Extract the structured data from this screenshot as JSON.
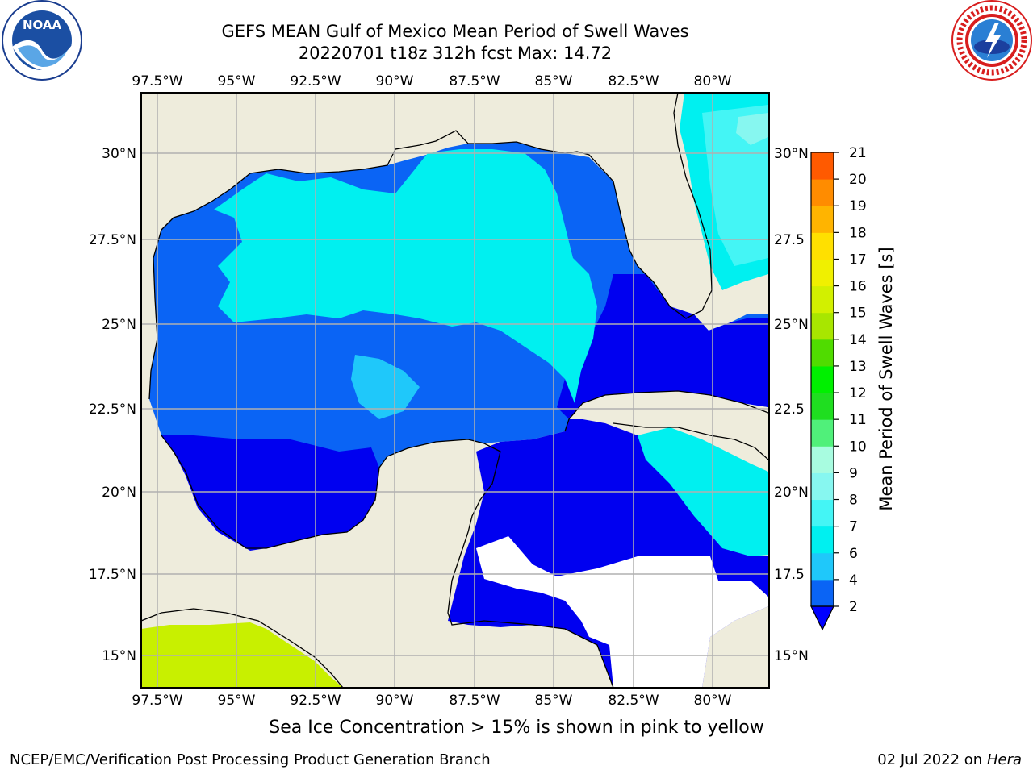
{
  "header": {
    "title_line1": "GEFS MEAN Gulf of Mexico Mean Period of Swell Waves",
    "title_line2": "20220701 t18z 312h fcst   Max: 14.72"
  },
  "map": {
    "lon_labels": [
      "97.5°W",
      "95°W",
      "92.5°W",
      "90°W",
      "87.5°W",
      "85°W",
      "82.5°W",
      "80°W"
    ],
    "lat_labels_left": [
      "30°N",
      "27.5°N",
      "25°N",
      "22.5°N",
      "20°N",
      "17.5°N",
      "15°N"
    ],
    "lat_labels_right": [
      "30°N",
      "27.5",
      "25°N",
      "22.5",
      "20°N",
      "17.5",
      "15°N"
    ],
    "land_color": "#eeecdc",
    "grid_color": "#b0b0b0"
  },
  "colorbar": {
    "label": "Mean Period of Swell Waves [s]",
    "ticks": [
      "2",
      "4",
      "6",
      "7",
      "8",
      "9",
      "10",
      "11",
      "12",
      "13",
      "14",
      "15",
      "16",
      "17",
      "18",
      "19",
      "20",
      "21"
    ],
    "colors": [
      "#0a64f5",
      "#1fc8fa",
      "#00f0f0",
      "#44f5f5",
      "#87f7f0",
      "#a8fce0",
      "#50f07a",
      "#1fde20",
      "#00f000",
      "#50dc00",
      "#a8e600",
      "#d2f000",
      "#f0f000",
      "#ffe000",
      "#ffb400",
      "#ff8c00",
      "#ff5a00",
      "#ff2a00",
      "#ff0000"
    ],
    "extend_color": "#0000ff"
  },
  "note": "Sea Ice Concentration > 15% is shown in pink to yellow",
  "footer": {
    "left": "NCEP/EMC/Verification Post Processing Product Generation Branch",
    "right_date": "02 Jul 2022 on ",
    "right_host": "Hera"
  },
  "logos": {
    "noaa_text": "NOAA",
    "nws_text": "NATIONAL WEATHER SERVICE"
  }
}
